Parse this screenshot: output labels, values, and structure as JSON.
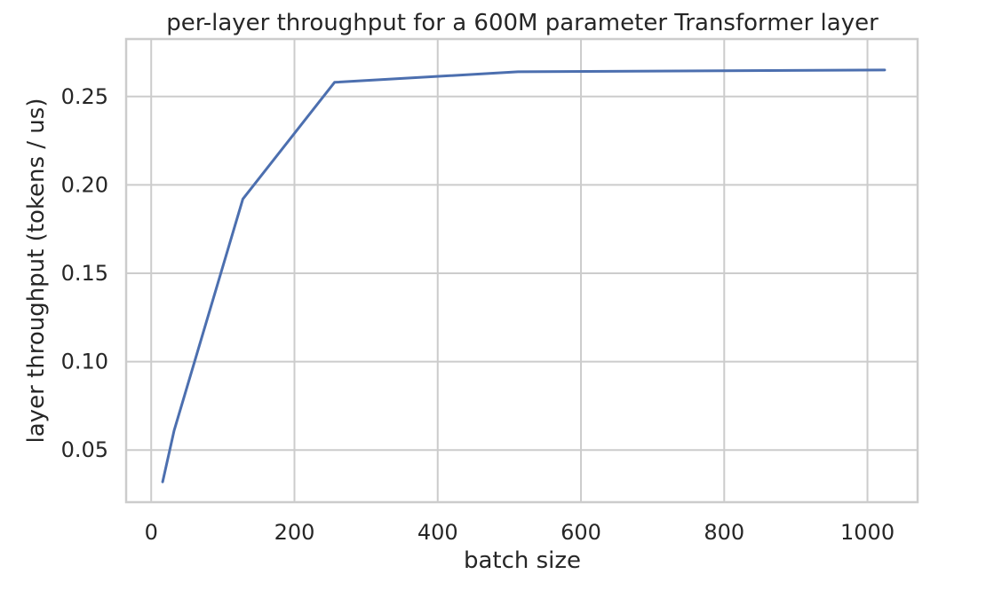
{
  "chart_data": {
    "type": "line",
    "title": "per-layer throughput for a 600M parameter Transformer layer",
    "xlabel": "batch size",
    "ylabel": "layer throughput (tokens / us)",
    "xlim": [
      -35,
      1070
    ],
    "ylim": [
      0.0205,
      0.2825
    ],
    "xticks": [
      0,
      200,
      400,
      600,
      800,
      1000
    ],
    "xtick_labels": [
      "0",
      "200",
      "400",
      "600",
      "800",
      "1000"
    ],
    "yticks": [
      0.05,
      0.1,
      0.15,
      0.2,
      0.25
    ],
    "ytick_labels": [
      "0.05",
      "0.10",
      "0.15",
      "0.20",
      "0.25"
    ],
    "grid": true,
    "legend": "none",
    "series": [
      {
        "color": "#4c6faf",
        "x": [
          16,
          32,
          128,
          256,
          512,
          1024
        ],
        "y": [
          0.032,
          0.061,
          0.192,
          0.258,
          0.264,
          0.265
        ]
      }
    ]
  }
}
